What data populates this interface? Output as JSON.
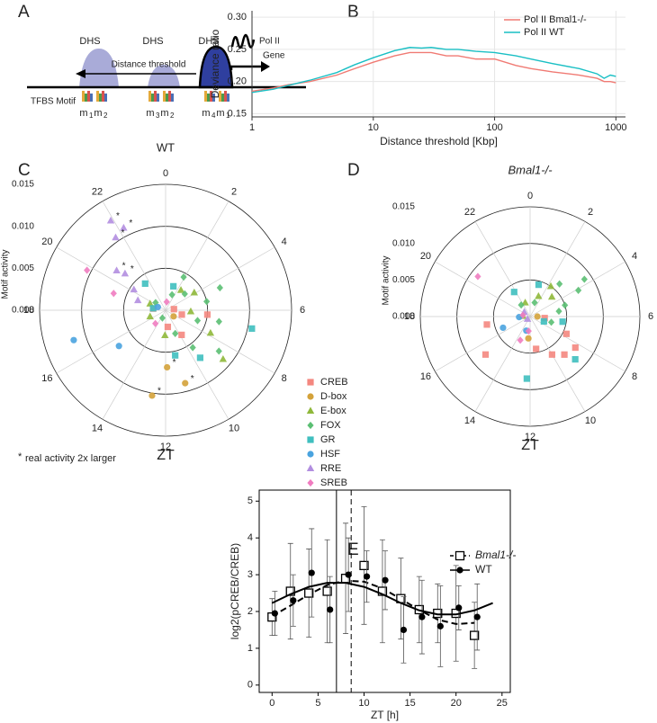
{
  "panels": [
    "A",
    "B",
    "C",
    "D",
    "E"
  ],
  "diagram": {
    "dhs_labels": [
      "DHS",
      "DHS",
      "DHS"
    ],
    "distance_label": "Distance threshold",
    "polymerase": "Pol II",
    "gene": "Gene",
    "motif_label": "TFBS Motif",
    "motifs": [
      {
        "name": "m",
        "index": "1"
      },
      {
        "name": "m",
        "index": "2"
      },
      {
        "name": "m",
        "index": "3"
      },
      {
        "name": "m",
        "index": "2"
      },
      {
        "name": "m",
        "index": "4"
      },
      {
        "name": "m",
        "index": "1"
      }
    ]
  },
  "chart_data": [
    {
      "type": "line",
      "xlabel": "Distance threshold [Kbp]",
      "ylabel": "Deviance ratio",
      "xscale": "log",
      "grid": true,
      "legend": "top-right",
      "xlim": [
        1,
        1200
      ],
      "xticks": [
        1,
        10,
        100,
        1000
      ],
      "ylim": [
        0.145,
        0.31
      ],
      "yticks": [
        0.15,
        {
          "value": 0.2,
          "label": "0.20"
        },
        0.25,
        {
          "value": 0.3,
          "label": "0.30"
        }
      ],
      "x": [
        1,
        1.5,
        2,
        3,
        5,
        7,
        10,
        15,
        20,
        25,
        30,
        40,
        50,
        70,
        100,
        150,
        200,
        300,
        500,
        700,
        800,
        900,
        1000
      ],
      "series": [
        {
          "name": "Pol II Bmal1-/-",
          "color": "#f07a73",
          "values": [
            0.185,
            0.19,
            0.195,
            0.2,
            0.21,
            0.22,
            0.23,
            0.24,
            0.245,
            0.245,
            0.245,
            0.24,
            0.24,
            0.235,
            0.235,
            0.225,
            0.22,
            0.215,
            0.21,
            0.205,
            0.2,
            0.2,
            0.198
          ]
        },
        {
          "name": "Pol II WT",
          "color": "#19bfc4",
          "values": [
            0.183,
            0.188,
            0.194,
            0.202,
            0.214,
            0.226,
            0.237,
            0.248,
            0.253,
            0.252,
            0.253,
            0.25,
            0.25,
            0.247,
            0.245,
            0.24,
            0.235,
            0.228,
            0.22,
            0.212,
            0.205,
            0.21,
            0.208
          ]
        }
      ]
    },
    {
      "type": "polar-scatter",
      "title": "WT",
      "radial_label": "Motif activity",
      "angular_label": "ZT",
      "star": "*",
      "footnote_mark": "*",
      "footnote": "real activity 2x larger",
      "rlim": [
        0,
        0.015
      ],
      "rticks": [
        {
          "value": 0,
          "label": "0.000"
        },
        0.005,
        {
          "value": 0.01,
          "label": "0.010"
        },
        0.015
      ],
      "angle_ticks": [
        0,
        2,
        4,
        6,
        8,
        10,
        12,
        14,
        16,
        18,
        20,
        22
      ],
      "series": [
        {
          "name": "CREB",
          "color": "#f4877f",
          "marker": "square",
          "x": [
            6.4,
            7.0,
            9.8,
            11.5,
            18.5,
            5.5
          ],
          "values": [
            0.005,
            0.002,
            0.0035,
            0.002,
            0.0015,
            0.001
          ]
        },
        {
          "name": "D-box",
          "color": "#d4a23a",
          "marker": "circle",
          "x": [
            11.9,
            11.0,
            12.6,
            8.5
          ],
          "values": [
            0.0068,
            0.009,
            0.0103,
            0.0012
          ],
          "starred": [
            0,
            1,
            2
          ]
        },
        {
          "name": "E-box",
          "color": "#8fb83a",
          "marker": "triangle",
          "x": [
            7.8,
            8.7,
            3.9,
            6.2,
            12.1,
            2.5,
            16.5,
            19.5
          ],
          "values": [
            0.006,
            0.009,
            0.004,
            0.003,
            0.003,
            0.003,
            0.002,
            0.002
          ]
        },
        {
          "name": "FOX",
          "color": "#5bbf73",
          "marker": "diamond",
          "x": [
            4.5,
            5.2,
            3.3,
            8.5,
            10.5,
            1.5,
            9.6,
            13.5,
            20.5,
            7.2,
            6.8,
            1.9
          ],
          "values": [
            0.007,
            0.005,
            0.003,
            0.008,
            0.003,
            0.002,
            0.0055,
            0.001,
            0.0015,
            0.004,
            0.0065,
            0.0045
          ]
        },
        {
          "name": "GR",
          "color": "#3fbfbf",
          "marker": "square",
          "x": [
            6.8,
            9.6,
            11.2,
            21.5,
            1.2,
            18.6
          ],
          "values": [
            0.0105,
            0.007,
            0.0055,
            0.004,
            0.003,
            0.0015
          ]
        },
        {
          "name": "HSF",
          "color": "#4aa3df",
          "marker": "circle",
          "x": [
            16.8,
            15.5,
            19.5
          ],
          "values": [
            0.0115,
            0.007,
            0.001
          ]
        },
        {
          "name": "RRE",
          "color": "#b28ee0",
          "marker": "triangle",
          "x": [
            21.7,
            21.9,
            22.2,
            20.6,
            20.8,
            19.3,
            20.2
          ],
          "values": [
            0.0105,
            0.0125,
            0.011,
            0.0075,
            0.0065,
            0.0035,
            0.0045
          ],
          "starred": [
            0,
            1,
            2,
            3,
            4
          ]
        },
        {
          "name": "SREB",
          "color": "#f07cc0",
          "marker": "diamond",
          "x": [
            19.8,
            19.2,
            14.5,
            0.5
          ],
          "values": [
            0.0105,
            0.0065,
            0.002,
            0.001
          ]
        }
      ]
    },
    {
      "type": "polar-scatter",
      "title": "Bmal1-/-",
      "radial_label": "Motif activity",
      "angular_label": "ZT",
      "rlim": [
        0,
        0.015
      ],
      "rticks": [
        {
          "value": 0,
          "label": "0.000"
        },
        0.005,
        {
          "value": 0.01,
          "label": "0.010"
        },
        0.015
      ],
      "angle_ticks": [
        0,
        2,
        4,
        6,
        8,
        10,
        12,
        14,
        16,
        18,
        20,
        22
      ],
      "series": [
        {
          "color": "#f4877f",
          "marker": "square",
          "x": [
            8.3,
            7.7,
            9.2,
            10,
            15.3,
            17.3,
            11.3,
            6.4
          ],
          "values": [
            0.0075,
            0.0055,
            0.007,
            0.006,
            0.008,
            0.006,
            0.0045,
            0.002
          ]
        },
        {
          "color": "#d4a23a",
          "marker": "circle",
          "x": [
            12.3,
            6.0
          ],
          "values": [
            0.003,
            0.001
          ]
        },
        {
          "color": "#8fb83a",
          "marker": "triangle",
          "x": [
            2.3,
            3.2,
            1.5,
            22.7,
            18.2
          ],
          "values": [
            0.005,
            0.004,
            0.003,
            0.002,
            0.001
          ]
        },
        {
          "color": "#5bbf73",
          "marker": "diamond",
          "x": [
            3.7,
            4.1,
            4.8,
            5.3,
            1.2,
            7,
            21.5,
            2.8
          ],
          "values": [
            0.009,
            0.0075,
            0.005,
            0.004,
            0.002,
            0.003,
            0.002,
            0.006
          ]
        },
        {
          "color": "#3fbfbf",
          "marker": "square",
          "x": [
            12.2,
            8.9,
            6.6,
            7.3,
            21.8,
            1.0
          ],
          "values": [
            0.0085,
            0.0085,
            0.0045,
            0.002,
            0.004,
            0.0045
          ]
        },
        {
          "color": "#4aa3df",
          "marker": "circle",
          "x": [
            16.5,
            17.8,
            13
          ],
          "values": [
            0.004,
            0.0015,
            0.002
          ]
        },
        {
          "color": "#b28ee0",
          "marker": "triangle",
          "x": [
            20.5,
            15
          ],
          "values": [
            0.001,
            0.0005
          ]
        },
        {
          "color": "#f07cc0",
          "marker": "diamond",
          "x": [
            20.5,
            12.4,
            18.7,
            13.5
          ],
          "values": [
            0.009,
            0.002,
            0.001,
            0.0035
          ]
        }
      ]
    },
    {
      "type": "errorbar",
      "xlabel": "ZT [h]",
      "ylabel": "log2(pCREB/CREB)",
      "legend": "top-right",
      "xlim": [
        -1.4,
        25.9
      ],
      "xticks": [
        0,
        5,
        10,
        15,
        20,
        25
      ],
      "ylim": [
        -0.2,
        5.3
      ],
      "yticks": [
        0,
        1,
        2,
        3,
        4,
        5
      ],
      "vlines": [
        {
          "value": 7.0,
          "style": "solid"
        },
        {
          "value": 8.6,
          "style": "dashed"
        }
      ],
      "series": [
        {
          "name": "Bmal1-/-",
          "color": "#000000",
          "marker": "open-square",
          "style": "dashed",
          "x": [
            0,
            2,
            4,
            6,
            8,
            10,
            12,
            14,
            16,
            18,
            20,
            22
          ],
          "values": [
            1.85,
            2.55,
            2.5,
            2.55,
            2.9,
            3.25,
            2.55,
            2.35,
            2.05,
            1.95,
            1.95,
            1.35
          ],
          "errors": [
            0.5,
            1.3,
            1.2,
            1.4,
            1.5,
            1.6,
            1.4,
            1.1,
            0.9,
            0.8,
            1.3,
            0.9
          ],
          "fit": {
            "x": [
              0,
              2,
              4,
              6,
              8,
              10,
              12,
              14,
              16,
              18,
              20,
              22
            ],
            "values": [
              1.87,
              2.16,
              2.46,
              2.72,
              2.84,
              2.81,
              2.63,
              2.34,
              2.04,
              1.78,
              1.66,
              1.69
            ]
          }
        },
        {
          "name": "WT",
          "color": "#000000",
          "marker": "circle",
          "style": "solid",
          "x": [
            0.3,
            2.3,
            4.3,
            6.3,
            8.3,
            10.3,
            12.3,
            14.3,
            16.3,
            18.3,
            20.3,
            22.3
          ],
          "values": [
            1.95,
            2.3,
            3.05,
            2.05,
            3.0,
            2.95,
            2.85,
            1.5,
            1.85,
            1.6,
            2.1,
            1.85
          ],
          "errors": [
            0.6,
            0.7,
            1.2,
            0.9,
            1.0,
            0.7,
            0.8,
            0.9,
            1.0,
            1.1,
            0.6,
            0.9
          ],
          "fit": {
            "x": [
              0,
              2,
              4,
              6,
              8,
              10,
              12,
              14,
              16,
              18,
              20,
              22,
              24
            ],
            "values": [
              2.23,
              2.47,
              2.67,
              2.78,
              2.78,
              2.67,
              2.47,
              2.23,
              2.03,
              1.92,
              1.92,
              2.03,
              2.23
            ]
          }
        }
      ]
    }
  ]
}
